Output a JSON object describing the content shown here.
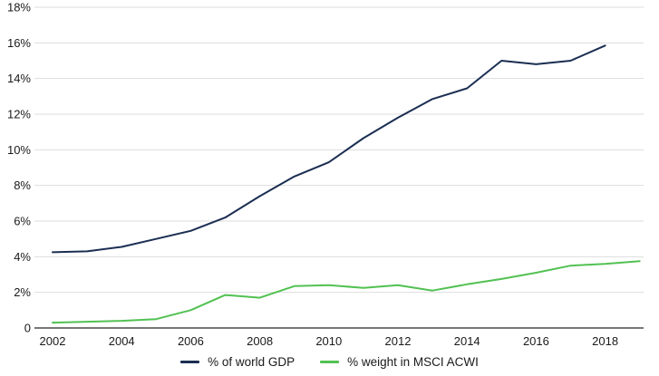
{
  "chart_data": {
    "type": "line",
    "title": "",
    "xlabel": "",
    "ylabel": "",
    "ylim": [
      0,
      18
    ],
    "xlim": [
      2001.5,
      2019.2
    ],
    "grid": "horizontal",
    "legend_position": "bottom-center",
    "background_color": "#ffffff",
    "gridline_color": "#dddddd",
    "axis_line_color": "#4a4a4a",
    "tick_label_color": "#1a1a1a",
    "yticks": [
      {
        "label": "18%",
        "value": 18
      },
      {
        "label": "16%",
        "value": 16
      },
      {
        "label": "14%",
        "value": 14
      },
      {
        "label": "12%",
        "value": 12
      },
      {
        "label": "10%",
        "value": 10
      },
      {
        "label": "8%",
        "value": 8
      },
      {
        "label": "6%",
        "value": 6
      },
      {
        "label": "4%",
        "value": 4
      },
      {
        "label": "2%",
        "value": 2
      },
      {
        "label": "0",
        "value": 0
      }
    ],
    "xticks": [
      {
        "label": "2002",
        "value": 2002
      },
      {
        "label": "2004",
        "value": 2004
      },
      {
        "label": "2006",
        "value": 2006
      },
      {
        "label": "2008",
        "value": 2008
      },
      {
        "label": "2010",
        "value": 2010
      },
      {
        "label": "2012",
        "value": 2012
      },
      {
        "label": "2014",
        "value": 2014
      },
      {
        "label": "2016",
        "value": 2016
      },
      {
        "label": "2018",
        "value": 2018
      }
    ],
    "series": [
      {
        "name": "% of world GDP",
        "color": "#1b2e52",
        "x": [
          2002,
          2003,
          2004,
          2005,
          2006,
          2007,
          2008,
          2009,
          2010,
          2011,
          2012,
          2013,
          2014,
          2015,
          2016,
          2017,
          2018
        ],
        "values": [
          4.25,
          4.3,
          4.55,
          5.0,
          5.45,
          6.2,
          7.4,
          8.5,
          9.3,
          10.65,
          11.8,
          12.85,
          13.45,
          15.0,
          14.8,
          15.0,
          15.85
        ]
      },
      {
        "name": "% weight in MSCI ACWI",
        "color": "#52c152",
        "x": [
          2002,
          2003,
          2004,
          2005,
          2006,
          2007,
          2008,
          2009,
          2010,
          2011,
          2012,
          2013,
          2014,
          2015,
          2016,
          2017,
          2018,
          2019
        ],
        "values": [
          0.3,
          0.35,
          0.4,
          0.5,
          1.0,
          1.85,
          1.7,
          2.35,
          2.4,
          2.25,
          2.4,
          2.1,
          2.45,
          2.75,
          3.1,
          3.5,
          3.6,
          3.75
        ]
      }
    ]
  }
}
